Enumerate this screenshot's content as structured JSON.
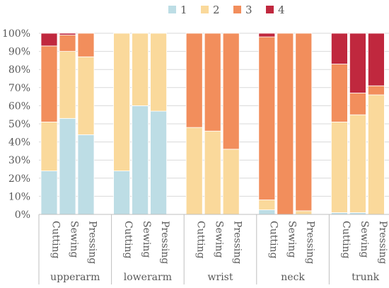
{
  "chart_data": {
    "type": "bar",
    "stacked": true,
    "percent_stacked": true,
    "title": "",
    "xlabel": "",
    "ylabel": "",
    "ylim": [
      0,
      100
    ],
    "y_ticks": [
      "0%",
      "10%",
      "20%",
      "30%",
      "40%",
      "50%",
      "60%",
      "70%",
      "80%",
      "90%",
      "100%"
    ],
    "grid": "horizontal",
    "legend_position": "top",
    "groups": [
      "upperarm",
      "lowerarm",
      "wrist",
      "neck",
      "trunk"
    ],
    "categories": [
      "Cutting",
      "Sewing",
      "Pressing"
    ],
    "series": [
      {
        "name": "1",
        "color": "#BDDDE5",
        "values": [
          [
            24,
            53,
            44
          ],
          [
            24,
            60,
            57
          ],
          [
            0,
            0,
            0
          ],
          [
            2.5,
            0,
            0
          ],
          [
            1,
            1,
            0
          ]
        ]
      },
      {
        "name": "2",
        "color": "#FAD99B",
        "values": [
          [
            27,
            37,
            43
          ],
          [
            76,
            40,
            43
          ],
          [
            48,
            46,
            36
          ],
          [
            5.5,
            0,
            2
          ],
          [
            50,
            54,
            66
          ]
        ]
      },
      {
        "name": "3",
        "color": "#F28E5C",
        "values": [
          [
            42,
            9,
            13
          ],
          [
            0,
            0,
            0
          ],
          [
            52,
            54,
            64
          ],
          [
            90,
            100,
            98
          ],
          [
            32,
            12,
            5
          ]
        ]
      },
      {
        "name": "4",
        "color": "#C0283E",
        "values": [
          [
            7,
            1,
            0
          ],
          [
            0,
            0,
            0
          ],
          [
            0,
            0,
            0
          ],
          [
            2,
            0,
            0
          ],
          [
            17,
            33,
            29
          ]
        ]
      }
    ]
  }
}
